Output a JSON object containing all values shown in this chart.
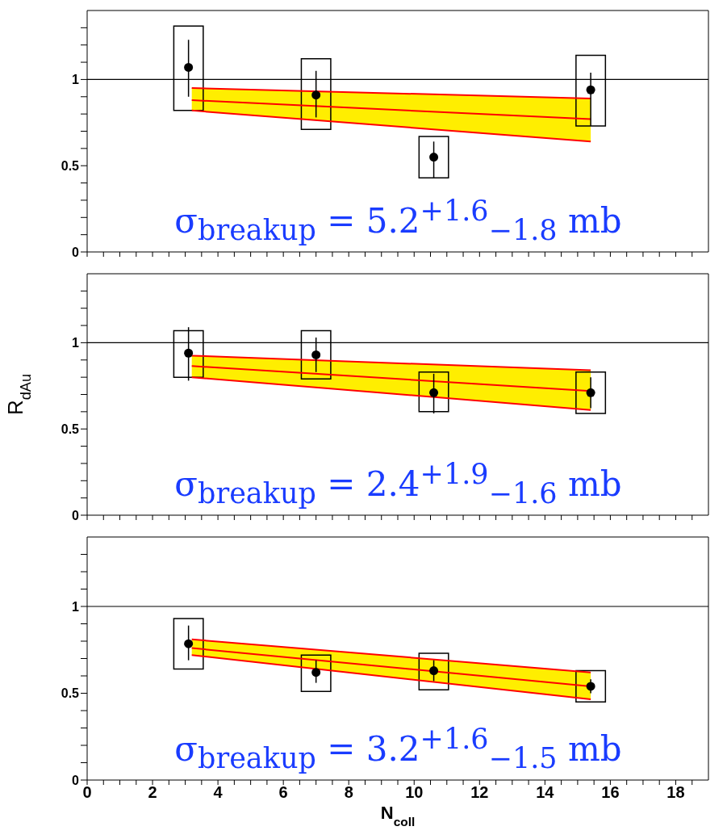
{
  "chart_data": [
    {
      "type": "scatter",
      "xlim": [
        0,
        19
      ],
      "xticks": [
        0,
        {
          "value": 0.5,
          "label": null
        },
        {
          "value": 1,
          "label": null
        },
        {
          "value": 1.5,
          "label": null
        },
        2,
        {
          "value": 2.5,
          "label": null
        },
        {
          "value": 3,
          "label": null
        },
        {
          "value": 3.5,
          "label": null
        },
        4,
        {
          "value": 4.5,
          "label": null
        },
        {
          "value": 5,
          "label": null
        },
        {
          "value": 5.5,
          "label": null
        },
        6,
        {
          "value": 6.5,
          "label": null
        },
        {
          "value": 7,
          "label": null
        },
        {
          "value": 7.5,
          "label": null
        },
        8,
        {
          "value": 8.5,
          "label": null
        },
        {
          "value": 9,
          "label": null
        },
        {
          "value": 9.5,
          "label": null
        },
        10,
        {
          "value": 10.5,
          "label": null
        },
        {
          "value": 11,
          "label": null
        },
        {
          "value": 11.5,
          "label": null
        },
        12,
        {
          "value": 12.5,
          "label": null
        },
        {
          "value": 13,
          "label": null
        },
        {
          "value": 13.5,
          "label": null
        },
        14,
        {
          "value": 14.5,
          "label": null
        },
        {
          "value": 15,
          "label": null
        },
        {
          "value": 15.5,
          "label": null
        },
        16,
        {
          "value": 16.5,
          "label": null
        },
        {
          "value": 17,
          "label": null
        },
        {
          "value": 17.5,
          "label": null
        },
        18,
        {
          "value": 18.5,
          "label": null
        }
      ],
      "ylim": [
        0,
        1.4
      ],
      "yticks": [
        0,
        {
          "value": 0.1,
          "label": null
        },
        {
          "value": 0.2,
          "label": null
        },
        {
          "value": 0.3,
          "label": null
        },
        {
          "value": 0.4,
          "label": null
        },
        0.5,
        {
          "value": 0.6,
          "label": null
        },
        {
          "value": 0.7,
          "label": null
        },
        {
          "value": 0.8,
          "label": null
        },
        {
          "value": 0.9,
          "label": null
        },
        1,
        {
          "value": 1.1,
          "label": null
        },
        {
          "value": 1.2,
          "label": null
        },
        {
          "value": 1.3,
          "label": null
        }
      ],
      "tick_labels": "y",
      "ref_lines": [
        {
          "axis": "y",
          "value": 1
        }
      ],
      "annotations": [
        "σ$_{breakup}$ = 5.2$^{+1.6}$$_{−1.8}$ mb"
      ],
      "series": [
        {
          "type": "line",
          "color": "#ff0000",
          "x": [
            3.2,
            15.4
          ],
          "values": [
            0.88,
            0.77
          ],
          "lower": [
            0.82,
            0.64
          ],
          "upper": [
            0.95,
            0.89
          ]
        },
        {
          "type": "line",
          "color": "#ff0000",
          "x": [
            3.2,
            15.4
          ],
          "values": [
            0.95,
            0.89
          ]
        },
        {
          "type": "line",
          "color": "#ff0000",
          "x": [
            3.2,
            15.4
          ],
          "values": [
            0.82,
            0.64
          ]
        },
        {
          "type": "bar",
          "color": "#000000",
          "x": [
            3.1,
            7.0,
            10.6,
            15.4
          ],
          "base": [
            0.82,
            0.71,
            0.43,
            0.73
          ],
          "values": [
            0.49,
            0.41,
            0.24,
            0.41
          ]
        },
        {
          "color": "#000000",
          "marker": "circle",
          "x": [
            3.1,
            7.0,
            10.6,
            15.4
          ],
          "values": [
            1.07,
            0.91,
            0.55,
            0.94
          ],
          "errors": [
            [
              0.9,
              1.23
            ],
            [
              0.78,
              1.05
            ],
            [
              0.43,
              0.64
            ],
            [
              0.73,
              1.04
            ]
          ]
        }
      ]
    },
    {
      "type": "scatter",
      "ylabel": "R$_{dAu}$",
      "xlim": [
        0,
        19
      ],
      "xticks": [
        0,
        {
          "value": 0.5,
          "label": null
        },
        {
          "value": 1,
          "label": null
        },
        {
          "value": 1.5,
          "label": null
        },
        2,
        {
          "value": 2.5,
          "label": null
        },
        {
          "value": 3,
          "label": null
        },
        {
          "value": 3.5,
          "label": null
        },
        4,
        {
          "value": 4.5,
          "label": null
        },
        {
          "value": 5,
          "label": null
        },
        {
          "value": 5.5,
          "label": null
        },
        6,
        {
          "value": 6.5,
          "label": null
        },
        {
          "value": 7,
          "label": null
        },
        {
          "value": 7.5,
          "label": null
        },
        8,
        {
          "value": 8.5,
          "label": null
        },
        {
          "value": 9,
          "label": null
        },
        {
          "value": 9.5,
          "label": null
        },
        10,
        {
          "value": 10.5,
          "label": null
        },
        {
          "value": 11,
          "label": null
        },
        {
          "value": 11.5,
          "label": null
        },
        12,
        {
          "value": 12.5,
          "label": null
        },
        {
          "value": 13,
          "label": null
        },
        {
          "value": 13.5,
          "label": null
        },
        14,
        {
          "value": 14.5,
          "label": null
        },
        {
          "value": 15,
          "label": null
        },
        {
          "value": 15.5,
          "label": null
        },
        16,
        {
          "value": 16.5,
          "label": null
        },
        {
          "value": 17,
          "label": null
        },
        {
          "value": 17.5,
          "label": null
        },
        18,
        {
          "value": 18.5,
          "label": null
        }
      ],
      "ylim": [
        0,
        1.4
      ],
      "yticks": [
        0,
        {
          "value": 0.1,
          "label": null
        },
        {
          "value": 0.2,
          "label": null
        },
        {
          "value": 0.3,
          "label": null
        },
        {
          "value": 0.4,
          "label": null
        },
        0.5,
        {
          "value": 0.6,
          "label": null
        },
        {
          "value": 0.7,
          "label": null
        },
        {
          "value": 0.8,
          "label": null
        },
        {
          "value": 0.9,
          "label": null
        },
        1,
        {
          "value": 1.1,
          "label": null
        },
        {
          "value": 1.2,
          "label": null
        },
        {
          "value": 1.3,
          "label": null
        }
      ],
      "tick_labels": "y",
      "ref_lines": [
        {
          "axis": "y",
          "value": 1
        }
      ],
      "annotations": [
        "σ$_{breakup}$ = 2.4$^{+1.9}$$_{−1.6}$ mb"
      ],
      "series": [
        {
          "type": "line",
          "color": "#ff0000",
          "x": [
            3.2,
            15.4
          ],
          "values": [
            0.865,
            0.72
          ],
          "lower": [
            0.8,
            0.61
          ],
          "upper": [
            0.925,
            0.84
          ]
        },
        {
          "type": "line",
          "color": "#ff0000",
          "x": [
            3.2,
            15.4
          ],
          "values": [
            0.925,
            0.84
          ]
        },
        {
          "type": "line",
          "color": "#ff0000",
          "x": [
            3.2,
            15.4
          ],
          "values": [
            0.8,
            0.61
          ]
        },
        {
          "type": "bar",
          "color": "#000000",
          "x": [
            3.1,
            7.0,
            10.6,
            15.4
          ],
          "base": [
            0.8,
            0.79,
            0.6,
            0.59
          ],
          "values": [
            0.27,
            0.28,
            0.23,
            0.24
          ]
        },
        {
          "color": "#000000",
          "marker": "circle",
          "x": [
            3.1,
            7.0,
            10.6,
            15.4
          ],
          "values": [
            0.94,
            0.93,
            0.71,
            0.71
          ],
          "errors": [
            [
              0.78,
              1.09
            ],
            [
              0.83,
              1.03
            ],
            [
              0.59,
              0.82
            ],
            [
              0.62,
              0.8
            ]
          ]
        }
      ]
    },
    {
      "type": "scatter",
      "xlabel": "N$_{coll}$",
      "xlim": [
        0,
        19
      ],
      "xticks": [
        0,
        {
          "value": 0.5,
          "label": null
        },
        {
          "value": 1,
          "label": null
        },
        {
          "value": 1.5,
          "label": null
        },
        2,
        {
          "value": 2.5,
          "label": null
        },
        {
          "value": 3,
          "label": null
        },
        {
          "value": 3.5,
          "label": null
        },
        4,
        {
          "value": 4.5,
          "label": null
        },
        {
          "value": 5,
          "label": null
        },
        {
          "value": 5.5,
          "label": null
        },
        6,
        {
          "value": 6.5,
          "label": null
        },
        {
          "value": 7,
          "label": null
        },
        {
          "value": 7.5,
          "label": null
        },
        8,
        {
          "value": 8.5,
          "label": null
        },
        {
          "value": 9,
          "label": null
        },
        {
          "value": 9.5,
          "label": null
        },
        10,
        {
          "value": 10.5,
          "label": null
        },
        {
          "value": 11,
          "label": null
        },
        {
          "value": 11.5,
          "label": null
        },
        12,
        {
          "value": 12.5,
          "label": null
        },
        {
          "value": 13,
          "label": null
        },
        {
          "value": 13.5,
          "label": null
        },
        14,
        {
          "value": 14.5,
          "label": null
        },
        {
          "value": 15,
          "label": null
        },
        {
          "value": 15.5,
          "label": null
        },
        16,
        {
          "value": 16.5,
          "label": null
        },
        {
          "value": 17,
          "label": null
        },
        {
          "value": 17.5,
          "label": null
        },
        18,
        {
          "value": 18.5,
          "label": null
        }
      ],
      "ylim": [
        0,
        1.4
      ],
      "yticks": [
        0,
        {
          "value": 0.1,
          "label": null
        },
        {
          "value": 0.2,
          "label": null
        },
        {
          "value": 0.3,
          "label": null
        },
        {
          "value": 0.4,
          "label": null
        },
        0.5,
        {
          "value": 0.6,
          "label": null
        },
        {
          "value": 0.7,
          "label": null
        },
        {
          "value": 0.8,
          "label": null
        },
        {
          "value": 0.9,
          "label": null
        },
        1,
        {
          "value": 1.1,
          "label": null
        },
        {
          "value": 1.2,
          "label": null
        },
        {
          "value": 1.3,
          "label": null
        }
      ],
      "ref_lines": [
        {
          "axis": "y",
          "value": 1
        }
      ],
      "annotations": [
        "σ$_{breakup}$ = 3.2$^{+1.6}$$_{−1.5}$ mb"
      ],
      "series": [
        {
          "type": "line",
          "color": "#ff0000",
          "x": [
            3.2,
            15.4
          ],
          "values": [
            0.76,
            0.54
          ],
          "lower": [
            0.72,
            0.465
          ],
          "upper": [
            0.81,
            0.62
          ]
        },
        {
          "type": "line",
          "color": "#ff0000",
          "x": [
            3.2,
            15.4
          ],
          "values": [
            0.81,
            0.62
          ]
        },
        {
          "type": "line",
          "color": "#ff0000",
          "x": [
            3.2,
            15.4
          ],
          "values": [
            0.72,
            0.465
          ]
        },
        {
          "type": "bar",
          "color": "#000000",
          "x": [
            3.1,
            7.0,
            10.6,
            15.4
          ],
          "base": [
            0.64,
            0.51,
            0.52,
            0.45
          ],
          "values": [
            0.29,
            0.21,
            0.21,
            0.18
          ]
        },
        {
          "color": "#000000",
          "marker": "circle",
          "x": [
            3.1,
            7.0,
            10.6,
            15.4
          ],
          "values": [
            0.785,
            0.62,
            0.63,
            0.54
          ],
          "errors": [
            [
              0.69,
              0.89
            ],
            [
              0.56,
              0.69
            ],
            [
              0.57,
              0.69
            ],
            [
              0.5,
              0.58
            ]
          ]
        }
      ]
    }
  ]
}
